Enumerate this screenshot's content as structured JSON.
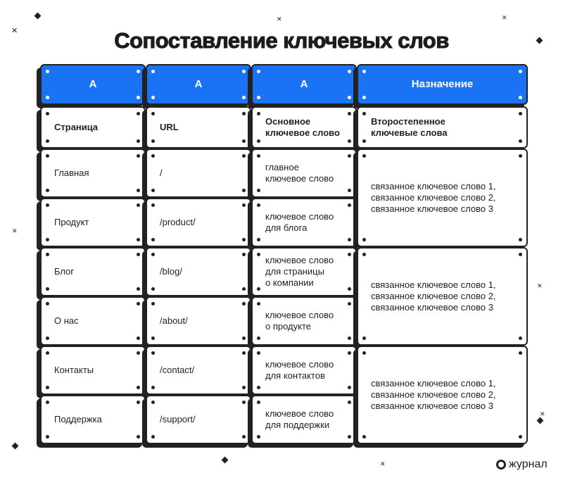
{
  "title": "Сопоставление ключевых слов",
  "header": [
    "A",
    "A",
    "A",
    "Назначение"
  ],
  "subheader": [
    "Страница",
    "URL",
    "Основное\nключевое слово",
    "Второстепенное\nключевые слова"
  ],
  "rows": [
    {
      "page": "Главная",
      "url": "/",
      "primary": "главное\nключевое слово"
    },
    {
      "page": "Продукт",
      "url": "/product/",
      "primary": "ключевое слово\nдля блога"
    },
    {
      "page": "Блог",
      "url": "/blog/",
      "primary": "ключевое слово\nдля страницы\nо компании"
    },
    {
      "page": "О нас",
      "url": "/about/",
      "primary": "ключевое слово\nо продукте"
    },
    {
      "page": "Контакты",
      "url": "/contact/",
      "primary": "ключевое слово\nдля контактов"
    },
    {
      "page": "Поддержка",
      "url": "/support/",
      "primary": "ключевое слово\nдля поддержки"
    }
  ],
  "secondary": [
    "связанное ключевое слово 1,\nсвязанное ключевое слово 2,\nсвязанное ключевое слово 3",
    "связанное ключевое слово 1,\nсвязанное ключевое слово 2,\nсвязанное ключевое слово 3",
    "связанное ключевое слово 1,\nсвязанное ключевое слово 2,\nсвязанное ключевое слово 3"
  ],
  "logo": "журнал",
  "colors": {
    "accent": "#1a72f5",
    "ink": "#222222"
  }
}
